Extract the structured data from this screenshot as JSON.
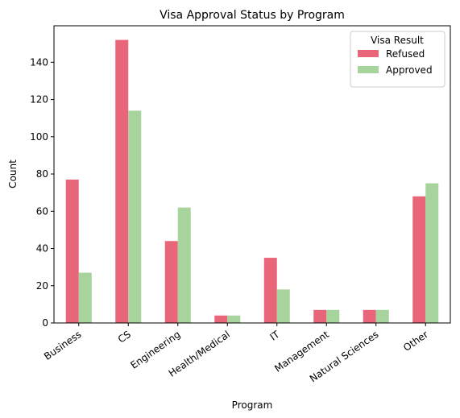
{
  "chart_data": {
    "type": "bar",
    "title": "Visa Approval Status by Program",
    "xlabel": "Program",
    "ylabel": "Count",
    "categories": [
      "Business",
      "CS",
      "Engineering",
      "Health/Medical",
      "IT",
      "Management",
      "Natural Sciences",
      "Other"
    ],
    "series": [
      {
        "name": "Refused",
        "color": "#e8657a",
        "values": [
          77,
          152,
          44,
          4,
          35,
          7,
          7,
          68
        ]
      },
      {
        "name": "Approved",
        "color": "#a6d49c",
        "values": [
          27,
          114,
          62,
          4,
          18,
          7,
          7,
          75
        ]
      }
    ],
    "ylim": [
      0,
      159.6
    ],
    "yticks": [
      0,
      20,
      40,
      60,
      80,
      100,
      120,
      140
    ],
    "grid": false,
    "legend": {
      "title": "Visa Result",
      "placement": "top-right"
    }
  }
}
